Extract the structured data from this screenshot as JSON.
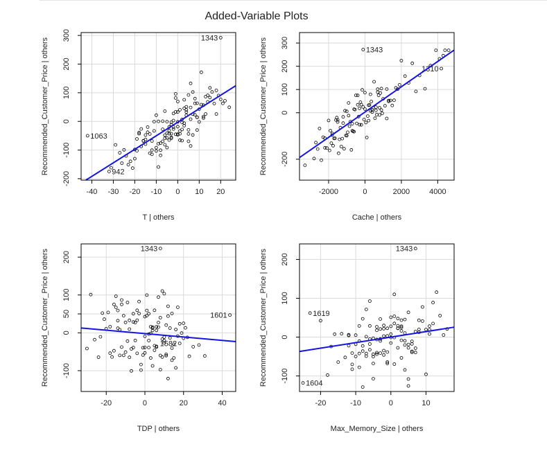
{
  "figure": {
    "title": "Added-Variable Plots"
  },
  "colors": {
    "fit_line": "#1414e0",
    "points": "#000000",
    "grid": "#d9d9d9"
  },
  "chart_data": [
    {
      "type": "scatter",
      "xlabel": "T | others",
      "ylabel": "Recommended_Customer_Price  | others",
      "xlim": [
        -45,
        27
      ],
      "ylim": [
        -205,
        310
      ],
      "xticks": [
        -40,
        -30,
        -20,
        -10,
        0,
        10,
        20
      ],
      "yticks": [
        -200,
        -100,
        0,
        100,
        200,
        300
      ],
      "grid": true,
      "fit_line": {
        "slope": 4.72,
        "intercept": -3
      },
      "labeled_points": [
        {
          "label": "1343",
          "x": 20,
          "y": 292
        },
        {
          "label": "1063",
          "x": -42,
          "y": -50
        },
        {
          "label": "942",
          "x": -32,
          "y": -175
        }
      ],
      "noise_seed": 11,
      "noise_sd": 45,
      "x_samples": [
        -31,
        -29,
        -27,
        -26,
        -25,
        -24,
        -23,
        -22,
        -21,
        -20,
        -19,
        -19,
        -18,
        -18,
        -17,
        -17,
        -16,
        -16,
        -15,
        -15,
        -14,
        -14,
        -13,
        -13,
        -12,
        -12,
        -11,
        -11,
        -10,
        -10,
        -10,
        -9,
        -9,
        -9,
        -8,
        -8,
        -8,
        -7,
        -7,
        -7,
        -6,
        -6,
        -6,
        -5,
        -5,
        -5,
        -5,
        -4,
        -4,
        -4,
        -4,
        -3,
        -3,
        -3,
        -3,
        -2,
        -2,
        -2,
        -2,
        -1,
        -1,
        -1,
        -1,
        0,
        0,
        0,
        0,
        0,
        1,
        1,
        1,
        1,
        2,
        2,
        2,
        2,
        3,
        3,
        3,
        3,
        4,
        4,
        4,
        4,
        5,
        5,
        5,
        5,
        6,
        6,
        6,
        7,
        7,
        7,
        8,
        8,
        8,
        9,
        9,
        9,
        10,
        10,
        11,
        11,
        12,
        12,
        13,
        13,
        14,
        14,
        15,
        15,
        16,
        17,
        18,
        19,
        20,
        21,
        22,
        24,
        -20,
        -12,
        -6,
        0,
        6,
        12,
        18,
        -15,
        -3,
        9
      ]
    },
    {
      "type": "scatter",
      "xlabel": "Cache | others",
      "ylabel": "Recommended_Customer_Price  | others",
      "xlim": [
        -3600,
        4900
      ],
      "ylim": [
        -290,
        345
      ],
      "xticks": [
        -2000,
        0,
        2000,
        4000
      ],
      "yticks": [
        -200,
        0,
        100,
        200,
        300
      ],
      "grid": true,
      "fit_line": {
        "slope": 0.0544,
        "intercept": 3
      },
      "labeled_points": [
        {
          "label": "1343",
          "x": -100,
          "y": 272
        },
        {
          "label": "1310",
          "x": 4200,
          "y": 190
        }
      ],
      "noise_seed": 23,
      "noise_sd": 45,
      "x_samples": [
        -3300,
        -2800,
        -2700,
        -2600,
        -2500,
        -2400,
        -2300,
        -2200,
        -2100,
        -2000,
        -1950,
        -1900,
        -1850,
        -1800,
        -1750,
        -1700,
        -1650,
        -1600,
        -1550,
        -1500,
        -1450,
        -1400,
        -1350,
        -1300,
        -1250,
        -1200,
        -1150,
        -1100,
        -1050,
        -1000,
        -950,
        -900,
        -850,
        -800,
        -750,
        -700,
        -650,
        -600,
        -550,
        -500,
        -450,
        -400,
        -350,
        -300,
        -250,
        -200,
        -150,
        -100,
        -50,
        0,
        50,
        100,
        150,
        200,
        250,
        300,
        350,
        400,
        450,
        500,
        550,
        600,
        650,
        700,
        750,
        800,
        850,
        900,
        950,
        1000,
        1100,
        1200,
        1300,
        1400,
        1500,
        1600,
        1700,
        1800,
        1900,
        2000,
        2200,
        2400,
        2600,
        2800,
        3000,
        3300,
        3600,
        3900,
        4100,
        4300,
        4400,
        4600,
        -1800,
        -1200,
        -600,
        -300,
        0,
        300,
        600,
        900,
        1200,
        -2200,
        -1500,
        -900,
        -400,
        200,
        700,
        1300,
        -1000,
        -700,
        -200,
        400,
        800
      ]
    },
    {
      "type": "scatter",
      "xlabel": "TDP | others",
      "ylabel": "Recommended_Customer_Price  | others",
      "xlim": [
        -33,
        47
      ],
      "ylim": [
        -155,
        235
      ],
      "xticks": [
        -20,
        0,
        20,
        40
      ],
      "yticks": [
        -100,
        0,
        50,
        100,
        200
      ],
      "grid": true,
      "fit_line": {
        "slope": -0.45,
        "intercept": -2
      },
      "labeled_points": [
        {
          "label": "1343",
          "x": 8,
          "y": 223
        },
        {
          "label": "1601",
          "x": 44,
          "y": 47
        },
        {
          "label": "1582",
          "x": 18,
          "y": -28
        }
      ],
      "noise_seed": 37,
      "noise_sd": 48,
      "x_samples": [
        -30,
        -28,
        -26,
        -24,
        -23,
        -22,
        -21,
        -20,
        -19,
        -18,
        -17,
        -16,
        -16,
        -15,
        -15,
        -14,
        -14,
        -13,
        -13,
        -12,
        -12,
        -11,
        -11,
        -10,
        -10,
        -9,
        -9,
        -8,
        -8,
        -7,
        -7,
        -6,
        -6,
        -5,
        -5,
        -4,
        -4,
        -3,
        -3,
        -2,
        -2,
        -1,
        -1,
        0,
        0,
        0,
        1,
        1,
        1,
        2,
        2,
        2,
        3,
        3,
        3,
        4,
        4,
        4,
        5,
        5,
        5,
        6,
        6,
        6,
        7,
        7,
        7,
        8,
        8,
        8,
        9,
        9,
        9,
        10,
        10,
        10,
        11,
        11,
        11,
        12,
        12,
        13,
        13,
        14,
        14,
        15,
        15,
        16,
        16,
        17,
        17,
        18,
        19,
        20,
        21,
        22,
        23,
        25,
        28,
        31,
        -12,
        -6,
        0,
        6,
        12,
        -18,
        -8,
        2,
        10,
        20,
        -14,
        -4,
        4,
        14
      ]
    },
    {
      "type": "scatter",
      "xlabel": "Max_Memory_Size | others",
      "ylabel": "Recommended_Customer_Price  | others",
      "xlim": [
        -26,
        18
      ],
      "ylim": [
        -140,
        240
      ],
      "xticks": [
        -20,
        -10,
        0,
        10
      ],
      "yticks": [
        -100,
        0,
        100,
        200
      ],
      "grid": true,
      "fit_line": {
        "slope": 1.42,
        "intercept": 0
      },
      "labeled_points": [
        {
          "label": "1343",
          "x": 7,
          "y": 228
        },
        {
          "label": "1619",
          "x": -23,
          "y": 62
        },
        {
          "label": "1604",
          "x": -25,
          "y": -118
        }
      ],
      "noise_seed": 53,
      "noise_sd": 50,
      "x_samples": [
        -20,
        -18,
        -17,
        -16,
        -15,
        -14,
        -13,
        -12,
        -12,
        -11,
        -11,
        -10,
        -10,
        -10,
        -9,
        -9,
        -9,
        -8,
        -8,
        -8,
        -7,
        -7,
        -7,
        -6,
        -6,
        -6,
        -6,
        -5,
        -5,
        -5,
        -5,
        -4,
        -4,
        -4,
        -4,
        -3,
        -3,
        -3,
        -3,
        -2,
        -2,
        -2,
        -2,
        -1,
        -1,
        -1,
        -1,
        0,
        0,
        0,
        0,
        1,
        1,
        1,
        1,
        2,
        2,
        2,
        2,
        3,
        3,
        3,
        3,
        4,
        4,
        4,
        4,
        5,
        5,
        5,
        5,
        6,
        6,
        6,
        7,
        7,
        8,
        8,
        9,
        9,
        10,
        10,
        11,
        11,
        12,
        12,
        13,
        14,
        15,
        16,
        -11,
        -8,
        -5,
        -2,
        1,
        4,
        7,
        -9,
        -6,
        -3,
        0,
        3,
        6,
        -12,
        -7,
        -4,
        2,
        5,
        8,
        11,
        -1,
        3
      ]
    }
  ]
}
